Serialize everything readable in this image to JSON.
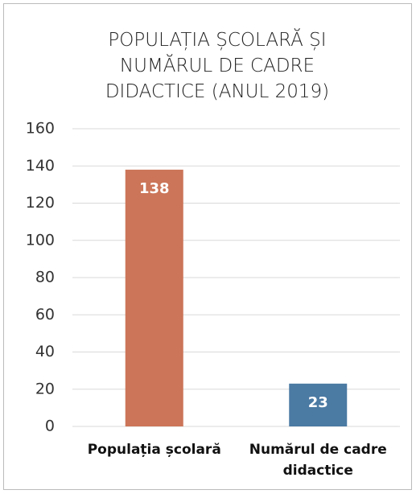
{
  "chart_data": {
    "type": "bar",
    "title": "POPULAȚIA ȘCOLARĂ ȘI NUMĂRUL DE CADRE DIDACTICE (ANUL 2019)",
    "categories": [
      "Populația școlară",
      "Numărul de cadre didactice"
    ],
    "values": [
      138,
      23
    ],
    "colors": [
      "#cc7558",
      "#4b7aa3"
    ],
    "ylim": [
      0,
      160
    ],
    "yticks": [
      0,
      20,
      40,
      60,
      80,
      100,
      120,
      140,
      160
    ],
    "grid": true
  }
}
